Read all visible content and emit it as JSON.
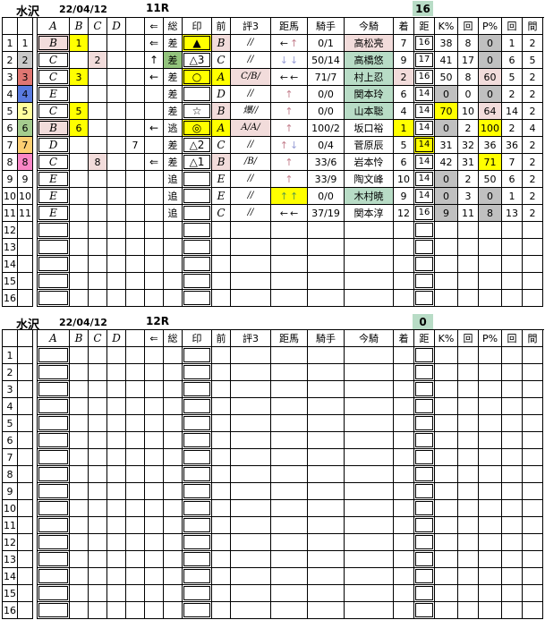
{
  "colors": {
    "yellow": "#ffff00",
    "pink": "#f2dcdb",
    "mint": "#b8dcc6",
    "green": "#93c47d",
    "gray": "#c0c0c0",
    "w2": "#c9c9c9",
    "w3": "#e07672",
    "w4": "#5a7bdf",
    "w5": "#ffff9e",
    "w6": "#a5cc8e",
    "w7": "#fdcf72",
    "w8": "#fa86c6"
  },
  "race1": {
    "track": "水沢",
    "date": "22/04/12",
    "race": "11R",
    "count": "16",
    "headers": [
      "",
      "",
      "",
      "A",
      "B",
      "C",
      "D",
      "",
      "⇐",
      "総",
      "印",
      "前",
      "評3",
      "距馬",
      "騎手",
      "今騎",
      "着",
      "距",
      "K%",
      "回",
      "P%",
      "回",
      "間"
    ],
    "rows": [
      {
        "n1": "1",
        "n2": "1",
        "a": {
          "v": "B",
          "bg": "pink"
        },
        "b": {
          "v": "1",
          "bg": "yellow"
        },
        "arr": "⇐",
        "sou": {
          "v": "差"
        },
        "mark": {
          "v": "▲",
          "bg": "yellow"
        },
        "mae": {
          "v": "B",
          "bg": "pink"
        },
        "hyo": {
          "v": "//"
        },
        "dist": {
          "parts": [
            [
              "←",
              "k"
            ],
            [
              "↑",
              "u"
            ]
          ]
        },
        "kis": "0/1",
        "ima": {
          "v": "高松亮",
          "bg": "pink"
        },
        "chk": {
          "v": "7"
        },
        "kyo": {
          "v": "16"
        },
        "kp": {
          "v": "38"
        },
        "r1": "8",
        "pp": {
          "v": "0",
          "bg": "gray"
        },
        "r2": "1",
        "ai": "2"
      },
      {
        "n1": "2",
        "n2": "2",
        "n2bg": "w2",
        "a": {
          "v": "C"
        },
        "c": {
          "v": "2",
          "bg": "pink"
        },
        "arr": "↑",
        "sou": {
          "v": "差",
          "bg": "green"
        },
        "mark": {
          "v": "△3"
        },
        "mae": {
          "v": "C"
        },
        "hyo": {
          "v": "//"
        },
        "dist": {
          "parts": [
            [
              "↓",
              "d"
            ],
            [
              "↓",
              "d"
            ]
          ]
        },
        "kis": "50/14",
        "ima": {
          "v": "高橋悠",
          "bg": "mint"
        },
        "chk": {
          "v": "9"
        },
        "kyo": {
          "v": "17"
        },
        "kp": {
          "v": "41"
        },
        "r1": "17",
        "pp": {
          "v": "0",
          "bg": "gray"
        },
        "r2": "6",
        "ai": "5"
      },
      {
        "n1": "3",
        "n2": "3",
        "n2bg": "w3",
        "a": {
          "v": "C"
        },
        "b": {
          "v": "3",
          "bg": "yellow"
        },
        "arr": "←",
        "sou": {
          "v": "差"
        },
        "mark": {
          "v": "○",
          "bg": "yellow"
        },
        "mae": {
          "v": "A",
          "bg": "yellow"
        },
        "hyo": {
          "v": "C/B/",
          "bg": "pink"
        },
        "dist": {
          "parts": [
            [
              "←",
              "k"
            ],
            [
              "←",
              "k"
            ]
          ]
        },
        "kis": "71/7",
        "ima": {
          "v": "村上忍",
          "bg": "mint"
        },
        "chk": {
          "v": "2",
          "bg": "pink"
        },
        "kyo": {
          "v": "16"
        },
        "kp": {
          "v": "50"
        },
        "r1": "8",
        "pp": {
          "v": "60",
          "bg": "pink"
        },
        "r2": "5",
        "ai": "2"
      },
      {
        "n1": "4",
        "n2": "4",
        "n2bg": "w4",
        "a": {
          "v": "E"
        },
        "sou": {
          "v": "差"
        },
        "mae": {
          "v": "D"
        },
        "hyo": {
          "v": "//"
        },
        "dist": {
          "parts": [
            [
              "↑",
              "u"
            ]
          ]
        },
        "kis": "0/0",
        "ima": {
          "v": "関本玲",
          "bg": "mint"
        },
        "chk": {
          "v": "6"
        },
        "kyo": {
          "v": "14"
        },
        "kp": {
          "v": "0",
          "bg": "gray"
        },
        "r1": "0",
        "pp": {
          "v": "0",
          "bg": "gray"
        },
        "r2": "2",
        "ai": "2"
      },
      {
        "n1": "5",
        "n2": "5",
        "n2bg": "w5",
        "a": {
          "v": "C"
        },
        "b": {
          "v": "5",
          "bg": "yellow"
        },
        "sou": {
          "v": "差"
        },
        "mark": {
          "v": "☆"
        },
        "mae": {
          "v": "B",
          "bg": "pink"
        },
        "hyo": {
          "v": "爆//"
        },
        "dist": {
          "parts": [
            [
              "↑",
              "u"
            ]
          ]
        },
        "kis": "0/0",
        "ima": {
          "v": "山本聡",
          "bg": "mint"
        },
        "chk": {
          "v": "4"
        },
        "kyo": {
          "v": "14"
        },
        "kp": {
          "v": "70",
          "bg": "yellow"
        },
        "r1": "10",
        "pp": {
          "v": "64",
          "bg": "pink"
        },
        "r2": "14",
        "ai": "2"
      },
      {
        "n1": "6",
        "n2": "6",
        "n2bg": "w6",
        "a": {
          "v": "B",
          "bg": "pink"
        },
        "b": {
          "v": "6",
          "bg": "yellow"
        },
        "arr": "←",
        "sou": {
          "v": "逃"
        },
        "mark": {
          "v": "◎",
          "bg": "yellow"
        },
        "mae": {
          "v": "A",
          "bg": "yellow"
        },
        "hyo": {
          "v": "A/A/",
          "bg": "pink"
        },
        "dist": {
          "parts": [
            [
              "↑",
              "u"
            ]
          ]
        },
        "kis": "100/2",
        "ima": {
          "v": "坂口裕"
        },
        "chk": {
          "v": "1",
          "bg": "yellow"
        },
        "kyo": {
          "v": "14"
        },
        "kp": {
          "v": "0",
          "bg": "gray"
        },
        "r1": "2",
        "pp": {
          "v": "100",
          "bg": "yellow"
        },
        "r2": "2",
        "ai": "4"
      },
      {
        "n1": "7",
        "n2": "7",
        "n2bg": "w7",
        "a": {
          "v": "D"
        },
        "e": {
          "v": "7"
        },
        "sou": {
          "v": "差"
        },
        "mark": {
          "v": "△2"
        },
        "mae": {
          "v": "C"
        },
        "hyo": {
          "v": "//"
        },
        "dist": {
          "parts": [
            [
              "↑",
              "u"
            ],
            [
              "↓",
              "d"
            ]
          ]
        },
        "kis": "0/4",
        "ima": {
          "v": "菅原辰"
        },
        "chk": {
          "v": "5"
        },
        "kyo": {
          "v": "14",
          "bg": "yellow"
        },
        "kp": {
          "v": "31"
        },
        "r1": "32",
        "pp": {
          "v": "36"
        },
        "r2": "36",
        "ai": "2"
      },
      {
        "n1": "8",
        "n2": "8",
        "n2bg": "w8",
        "a": {
          "v": "C"
        },
        "c": {
          "v": "8",
          "bg": "pink"
        },
        "arr": "⇐",
        "sou": {
          "v": "差"
        },
        "mark": {
          "v": "△1"
        },
        "mae": {
          "v": "B",
          "bg": "pink"
        },
        "hyo": {
          "v": "/B/"
        },
        "dist": {
          "parts": [
            [
              "↑",
              "u"
            ]
          ]
        },
        "kis": "33/6",
        "ima": {
          "v": "岩本怜"
        },
        "chk": {
          "v": "6"
        },
        "kyo": {
          "v": "14"
        },
        "kp": {
          "v": "42"
        },
        "r1": "31",
        "pp": {
          "v": "71",
          "bg": "yellow"
        },
        "r2": "7",
        "ai": "2"
      },
      {
        "n1": "9",
        "n2": "9",
        "a": {
          "v": "E"
        },
        "sou": {
          "v": "追"
        },
        "mae": {
          "v": "E"
        },
        "hyo": {
          "v": "//"
        },
        "dist": {
          "parts": [
            [
              "↑",
              "u"
            ]
          ]
        },
        "kis": "33/9",
        "ima": {
          "v": "陶文峰"
        },
        "chk": {
          "v": "10"
        },
        "kyo": {
          "v": "14"
        },
        "kp": {
          "v": "0",
          "bg": "gray"
        },
        "r1": "2",
        "pp": {
          "v": "50"
        },
        "r2": "6",
        "ai": "2"
      },
      {
        "n1": "10",
        "n2": "10",
        "a": {
          "v": "E"
        },
        "sou": {
          "v": "追"
        },
        "mae": {
          "v": "E"
        },
        "hyo": {
          "v": "//"
        },
        "dist": {
          "parts": [
            [
              "↑",
              "g"
            ],
            [
              "↑",
              "g"
            ]
          ],
          "bg": "yellow"
        },
        "kis": "0/0",
        "ima": {
          "v": "木村暁",
          "bg": "mint"
        },
        "chk": {
          "v": "9"
        },
        "kyo": {
          "v": "14"
        },
        "kp": {
          "v": "0",
          "bg": "gray"
        },
        "r1": "3",
        "pp": {
          "v": "0",
          "bg": "gray"
        },
        "r2": "1",
        "ai": "2"
      },
      {
        "n1": "11",
        "n2": "11",
        "a": {
          "v": "E"
        },
        "sou": {
          "v": "追"
        },
        "mae": {
          "v": "C"
        },
        "hyo": {
          "v": "//"
        },
        "dist": {
          "parts": [
            [
              "←",
              "k"
            ],
            [
              "←",
              "k"
            ]
          ]
        },
        "kis": "37/19",
        "ima": {
          "v": "関本淳"
        },
        "chk": {
          "v": "12"
        },
        "kyo": {
          "v": "16"
        },
        "kp": {
          "v": "9",
          "bg": "gray"
        },
        "r1": "11",
        "pp": {
          "v": "8",
          "bg": "gray"
        },
        "r2": "13",
        "ai": "2"
      },
      {
        "n1": "12"
      },
      {
        "n1": "13"
      },
      {
        "n1": "14"
      },
      {
        "n1": "15"
      },
      {
        "n1": "16"
      }
    ]
  },
  "race2": {
    "track": "水沢",
    "date": "22/04/12",
    "race": "12R",
    "count": "0",
    "headers": [
      "",
      "",
      "",
      "A",
      "B",
      "C",
      "D",
      "",
      "⇐",
      "総",
      "印",
      "前",
      "評3",
      "距馬",
      "騎手",
      "今騎",
      "着",
      "距",
      "K%",
      "回",
      "P%",
      "回",
      "間"
    ],
    "rows": [
      {
        "n1": "1"
      },
      {
        "n1": "2"
      },
      {
        "n1": "3"
      },
      {
        "n1": "4"
      },
      {
        "n1": "5"
      },
      {
        "n1": "6"
      },
      {
        "n1": "7"
      },
      {
        "n1": "8"
      },
      {
        "n1": "9"
      },
      {
        "n1": "10"
      },
      {
        "n1": "11"
      },
      {
        "n1": "12"
      },
      {
        "n1": "13"
      },
      {
        "n1": "14"
      },
      {
        "n1": "15"
      },
      {
        "n1": "16"
      }
    ]
  }
}
